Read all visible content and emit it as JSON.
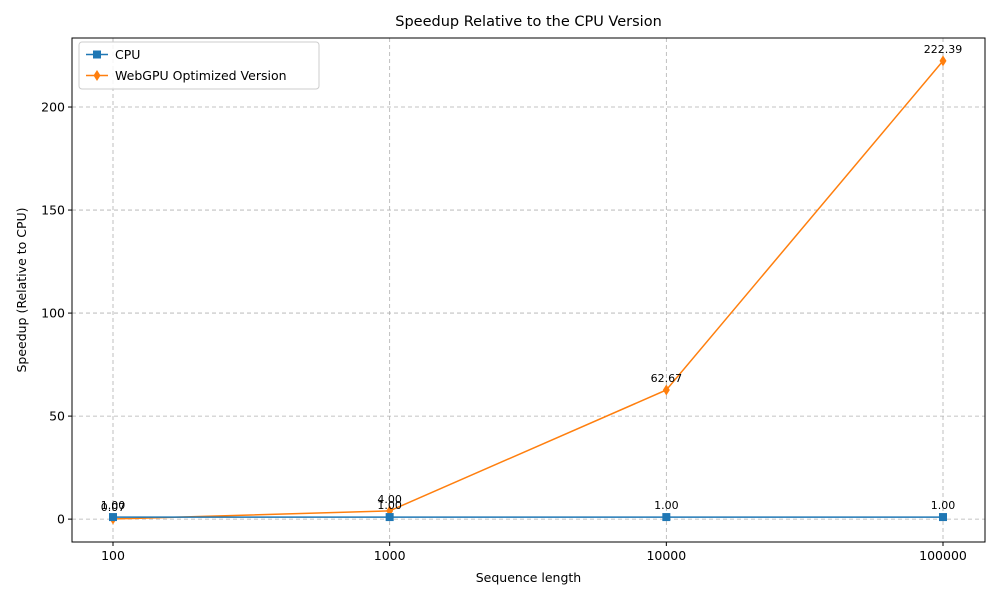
{
  "chart_data": {
    "type": "line",
    "title": "Speedup Relative to the CPU Version",
    "xlabel": "Sequence length",
    "ylabel": "Speedup (Relative to CPU)",
    "categories": [
      "100",
      "1000",
      "10000",
      "100000"
    ],
    "yticks": [
      0,
      50,
      100,
      150,
      200
    ],
    "ylim": [
      -11.1,
      233.5
    ],
    "grid": true,
    "legend_position": "upper-left",
    "series": [
      {
        "name": "CPU",
        "color": "#1f77b4",
        "marker": "square",
        "values": [
          1.0,
          1.0,
          1.0,
          1.0
        ],
        "labels": [
          "1.00",
          "1.00",
          "1.00",
          "1.00"
        ]
      },
      {
        "name": "WebGPU Optimized Version",
        "color": "#ff7f0e",
        "marker": "diamond",
        "values": [
          0.07,
          4.0,
          62.67,
          222.39
        ],
        "labels": [
          "0.07",
          "4.00",
          "62.67",
          "222.39"
        ]
      }
    ]
  }
}
